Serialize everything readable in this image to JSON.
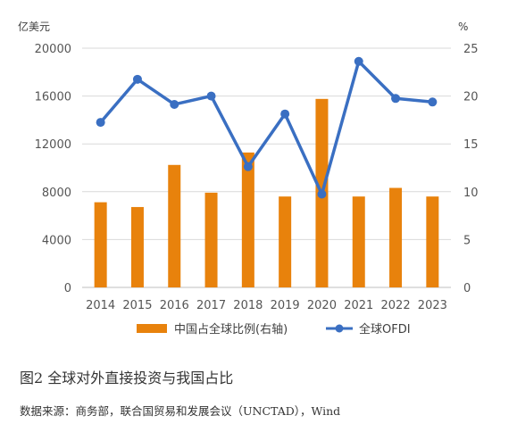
{
  "chart_data": {
    "type": "bar+line",
    "categories": [
      "2014",
      "2015",
      "2016",
      "2017",
      "2018",
      "2019",
      "2020",
      "2021",
      "2022",
      "2023"
    ],
    "series": [
      {
        "name": "中国占全球比例(右轴)",
        "type": "bar",
        "axis": "right",
        "color": "#E8820C",
        "values": [
          8.9,
          8.4,
          12.8,
          9.9,
          14.1,
          9.5,
          19.7,
          9.5,
          10.4,
          9.5
        ]
      },
      {
        "name": "全球OFDI",
        "type": "line",
        "axis": "left",
        "color": "#3A6FC2",
        "values": [
          13800,
          17400,
          15300,
          16000,
          10100,
          14500,
          7800,
          18900,
          15800,
          15500
        ]
      }
    ],
    "y_left": {
      "unit": "亿美元",
      "lim": [
        0,
        20000
      ],
      "ticks": [
        "0",
        "4000",
        "8000",
        "12000",
        "16000",
        "20000"
      ]
    },
    "y_right": {
      "unit": "%",
      "lim": [
        0,
        25
      ],
      "ticks": [
        "0",
        "5",
        "10",
        "15",
        "20",
        "25"
      ]
    },
    "grid": true,
    "legend": "bottom"
  },
  "caption": "图2 全球对外直接投资与我国占比",
  "source": "数据来源：商务部，联合国贸易和发展会议（UNCTAD），Wind"
}
